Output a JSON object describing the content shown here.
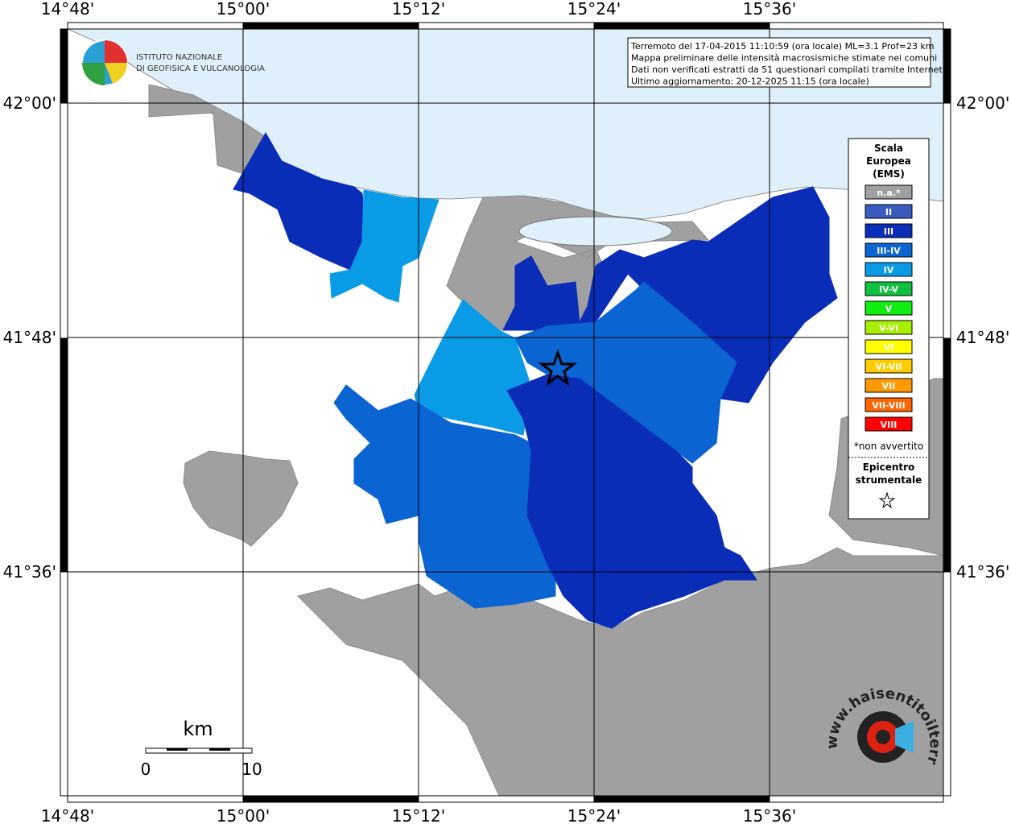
{
  "logo": {
    "line1": "ISTITUTO NAZIONALE",
    "line2": "DI GEOFISICA E VULCANOLOGIA"
  },
  "info": [
    "Terremoto del 17-04-2015 11:10:59 (ora locale) ML=3.1 Prof=23 km",
    "Mappa preliminare delle intensità macrosismiche stimate nei comuni",
    "Dati non verificati estratti da 51 questionari compilati tramite Internet.",
    "Ultimo aggiornamento: 20-12-2025 11:15 (ora locale)"
  ],
  "lon_labels": [
    "14°48'",
    "15°00'",
    "15°12'",
    "15°24'",
    "15°36'"
  ],
  "lat_labels": [
    "42°00'",
    "41°48'",
    "41°36'"
  ],
  "legend": {
    "title": [
      "Scala",
      "Europea",
      "(EMS)"
    ],
    "items": [
      {
        "label": "n.a.*",
        "color": "#a0a0a0"
      },
      {
        "label": "II",
        "color": "#3a5cc0"
      },
      {
        "label": "III",
        "color": "#0a2db8"
      },
      {
        "label": "III-IV",
        "color": "#0a64d2"
      },
      {
        "label": "IV",
        "color": "#0a9be6"
      },
      {
        "label": "IV-V",
        "color": "#10c040"
      },
      {
        "label": "V",
        "color": "#10ee10"
      },
      {
        "label": "V-VI",
        "color": "#a8ee00"
      },
      {
        "label": "VI",
        "color": "#ffff00"
      },
      {
        "label": "VI-VII",
        "color": "#ffcc00"
      },
      {
        "label": "VII",
        "color": "#ff9a00"
      },
      {
        "label": "VII-VIII",
        "color": "#ff6600"
      },
      {
        "label": "VIII",
        "color": "#ff0000"
      }
    ],
    "note": "*non avvertito",
    "epicenter": [
      "Epicentro",
      "strumentale"
    ]
  },
  "scale": {
    "unit": "km",
    "ticks": [
      "0",
      "10"
    ]
  },
  "site_logo": "www.haisentitoilterremoto.it"
}
